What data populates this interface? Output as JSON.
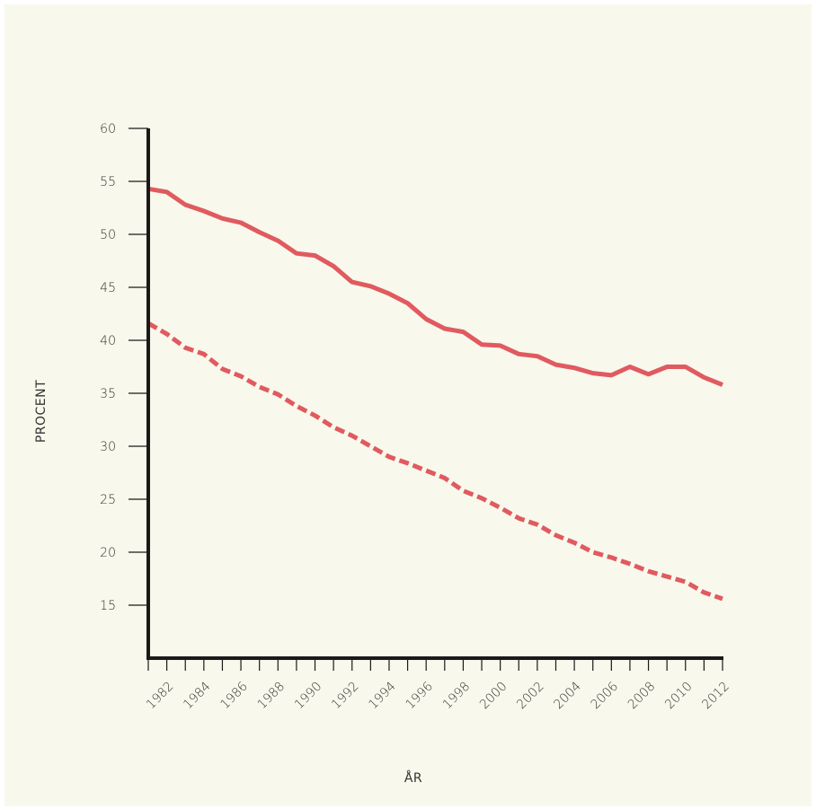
{
  "colors": {
    "background": "#f8f8ec",
    "series": "#e05a5f",
    "axis": "#1a1a1a",
    "text": "#333333"
  },
  "chart_data": {
    "type": "line",
    "title": "",
    "xlabel": "ÅR",
    "ylabel": "PROCENT",
    "xlim": [
      1981,
      2012
    ],
    "ylim": [
      10,
      60
    ],
    "yticks": [
      15,
      20,
      25,
      30,
      35,
      40,
      45,
      50,
      55,
      60
    ],
    "xtick_labels": [
      "1982",
      "1984",
      "1986",
      "1988",
      "1990",
      "1992",
      "1994",
      "1996",
      "1998",
      "2000",
      "2002",
      "2004",
      "2006",
      "2008",
      "2010",
      "2012"
    ],
    "grid": false,
    "legend": "none",
    "x": [
      1981,
      1982,
      1983,
      1984,
      1985,
      1986,
      1987,
      1988,
      1989,
      1990,
      1991,
      1992,
      1993,
      1994,
      1995,
      1996,
      1997,
      1998,
      1999,
      2000,
      2001,
      2002,
      2003,
      2004,
      2005,
      2006,
      2007,
      2008,
      2009,
      2010,
      2011,
      2012
    ],
    "series": [
      {
        "style": "solid",
        "values": [
          54.3,
          54.0,
          52.8,
          52.2,
          51.5,
          51.1,
          50.2,
          49.4,
          48.2,
          48.0,
          47.0,
          45.5,
          45.1,
          44.4,
          43.5,
          42.0,
          41.1,
          40.8,
          39.6,
          39.5,
          38.7,
          38.5,
          37.7,
          37.4,
          36.9,
          36.7,
          37.5,
          36.8,
          37.5,
          37.5,
          36.5,
          35.8
        ]
      },
      {
        "style": "dashed",
        "values": [
          41.6,
          40.6,
          39.3,
          38.7,
          37.3,
          36.6,
          35.6,
          34.9,
          33.8,
          32.9,
          31.8,
          31.0,
          30.0,
          29.0,
          28.4,
          27.7,
          27.0,
          25.8,
          25.1,
          24.2,
          23.2,
          22.6,
          21.6,
          20.9,
          20.0,
          19.5,
          18.9,
          18.2,
          17.7,
          17.2,
          16.2,
          15.6
        ]
      }
    ]
  }
}
